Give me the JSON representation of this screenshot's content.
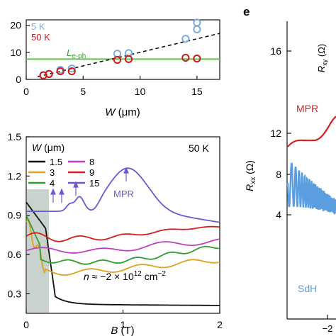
{
  "chart_data": [
    {
      "type": "scatter",
      "xlabel": "W (μm)",
      "xlim": [
        0,
        17
      ],
      "ylim": [
        0,
        22
      ],
      "xticks": [
        "0",
        "5",
        "10",
        "15"
      ],
      "yticks": [
        "0",
        "10",
        "20"
      ],
      "legend": [
        "5 K",
        "50 K"
      ],
      "colors": {
        "5K": "#7aaede",
        "50K": "#d01c1c",
        "leph": "#5cc84a",
        "fit": "#111111"
      },
      "series": [
        {
          "name": "5 K",
          "x": [
            1.5,
            2,
            3,
            4,
            8,
            9,
            14,
            15,
            15
          ],
          "y": [
            1.5,
            2,
            3.5,
            4,
            9.5,
            9.7,
            15,
            18.5,
            21
          ]
        },
        {
          "name": "50 K",
          "x": [
            1.5,
            2,
            3,
            4,
            8,
            9,
            14,
            15
          ],
          "y": [
            1.5,
            2,
            3,
            3,
            7.2,
            7.5,
            8,
            7.7
          ]
        }
      ],
      "leph_line": {
        "label": "L",
        "sub": "e-ph",
        "y": 7.5
      },
      "fit_line": {
        "x0": 1.0,
        "y0": 1.0,
        "x1": 17,
        "y1": 17
      }
    },
    {
      "type": "line",
      "title": "50 K",
      "xlabel": "B (T)",
      "ylabel": "",
      "xlim": [
        0,
        2
      ],
      "ylim": [
        0.15,
        1.5
      ],
      "xticks": [
        "0",
        "1",
        "2"
      ],
      "yticks": [
        "0.3",
        "0.6",
        "0.9",
        "1.2",
        "1.5"
      ],
      "legend_title": "W (μm)",
      "annotation_n": "n ≈ −2 × 10",
      "annotation_exp": "12",
      "annotation_unit": " cm",
      "annotation_unit_exp": "−2",
      "mpr_label": "MPR",
      "series": [
        {
          "name": "1.5",
          "color": "#111111"
        },
        {
          "name": "3",
          "color": "#e0a020"
        },
        {
          "name": "4",
          "color": "#2e9e2e"
        },
        {
          "name": "8",
          "color": "#c040c0"
        },
        {
          "name": "9",
          "color": "#d22020"
        },
        {
          "name": "15",
          "color": "#6a5ad2"
        }
      ]
    },
    {
      "type": "line",
      "panel_label": "e",
      "ylabel": "R",
      "ylabel_sub": "xx",
      "ylabel_unit": " (Ω)",
      "ylabel2": "R",
      "ylabel2_sub": "xy",
      "ylabel2_unit": " (Ω)",
      "yticks": [
        "4",
        "8",
        "12",
        "16"
      ],
      "xticks": [
        "−2"
      ],
      "series": [
        {
          "name": "MPR",
          "color": "#d42222"
        },
        {
          "name": "SdH",
          "color": "#5a9ee0"
        }
      ]
    }
  ]
}
